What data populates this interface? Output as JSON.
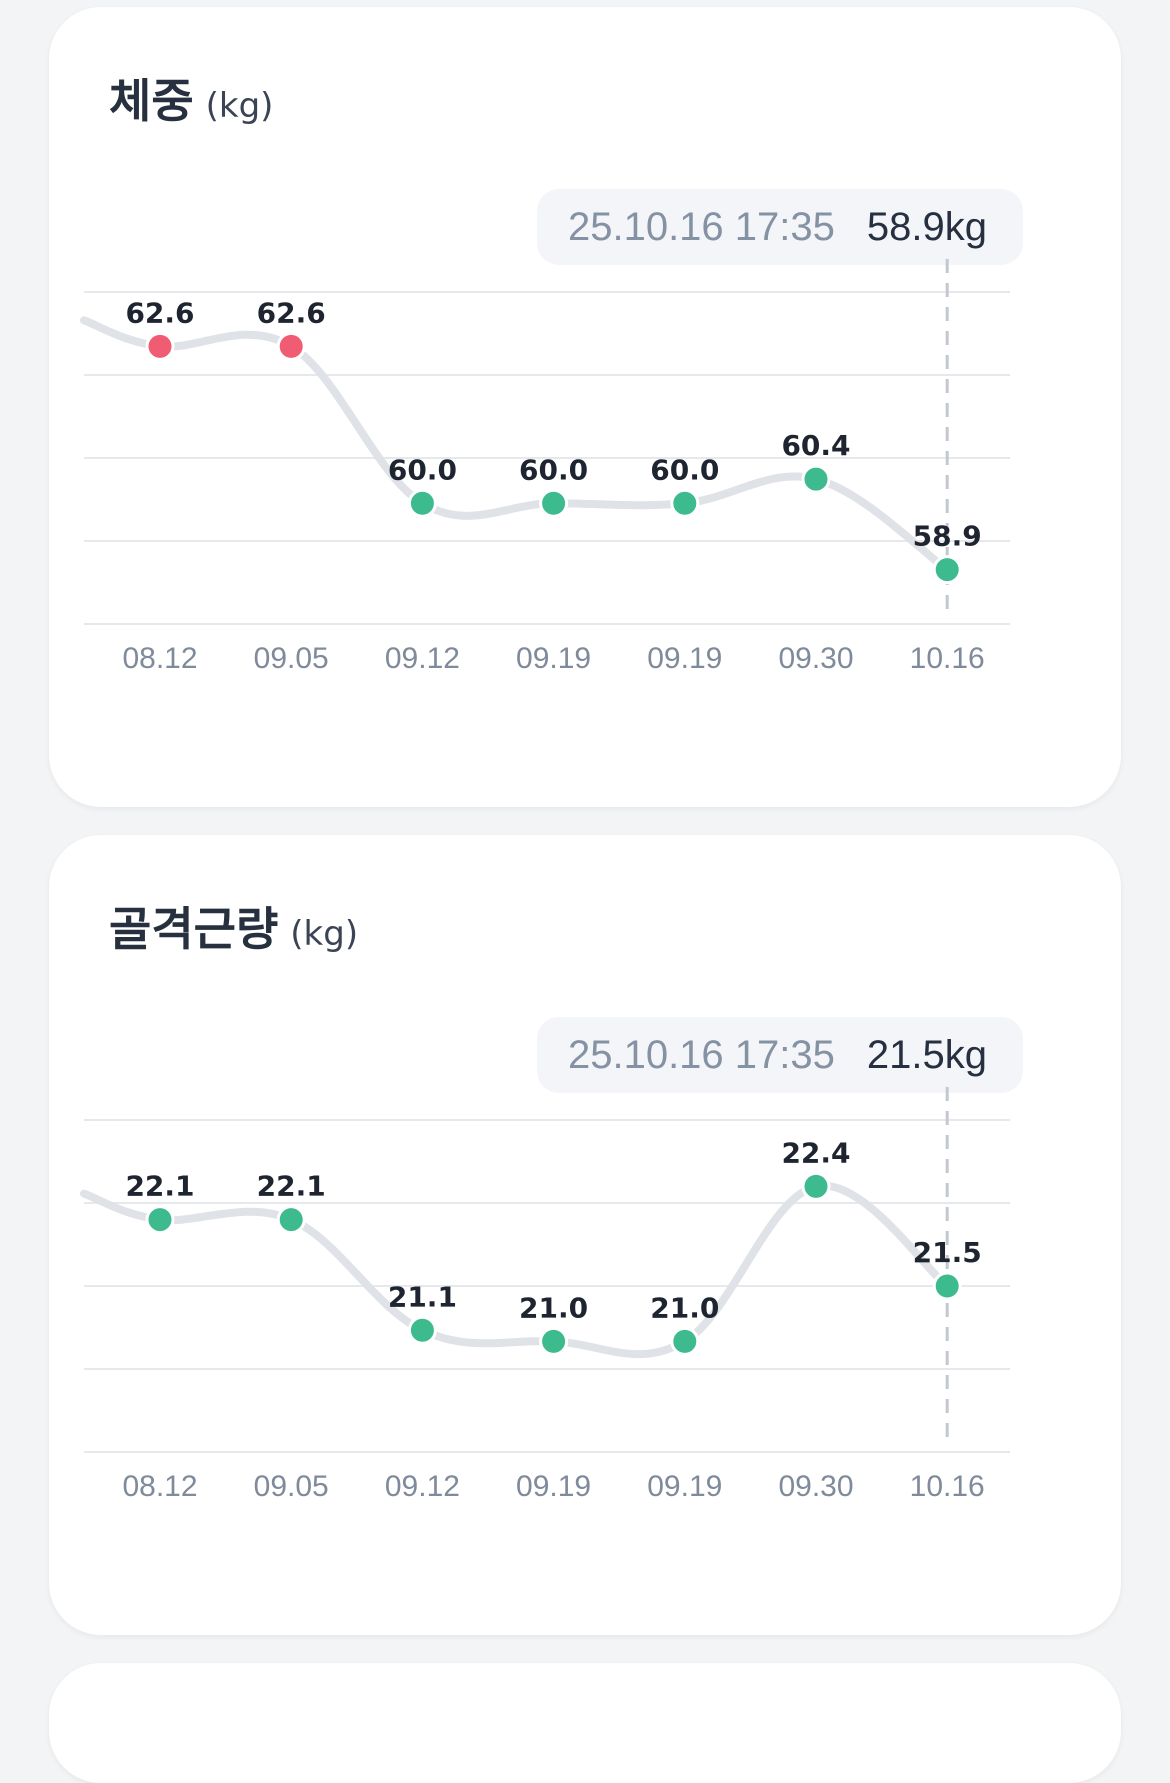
{
  "cards": [
    {
      "title": "체중",
      "unit": "(kg)",
      "tooltip": {
        "date": "25.10.16 17:35",
        "value": "58.9kg"
      },
      "chart_data": {
        "type": "line",
        "x": [
          "08.12",
          "09.05",
          "09.12",
          "09.19",
          "09.19",
          "09.30",
          "10.16"
        ],
        "values": [
          62.6,
          62.6,
          60.0,
          60.0,
          60.0,
          60.4,
          58.9
        ],
        "labels": [
          "62.6",
          "62.6",
          "60.0",
          "60.0",
          "60.0",
          "60.4",
          "58.9"
        ],
        "point_colors": [
          "#f05c72",
          "#f05c72",
          "#3dbb8e",
          "#3dbb8e",
          "#3dbb8e",
          "#3dbb8e",
          "#3dbb8e"
        ],
        "ylim": [
          58.0,
          63.5
        ],
        "grid": true,
        "selected_index": 6,
        "colors": {
          "line": "#dfe2e7",
          "grid": "#e6e8ec",
          "selected_marker": "#c3c8d0"
        }
      }
    },
    {
      "title": "골격근량",
      "unit": "(kg)",
      "tooltip": {
        "date": "25.10.16 17:35",
        "value": "21.5kg"
      },
      "chart_data": {
        "type": "line",
        "x": [
          "08.12",
          "09.05",
          "09.12",
          "09.19",
          "09.19",
          "09.30",
          "10.16"
        ],
        "values": [
          22.1,
          22.1,
          21.1,
          21.0,
          21.0,
          22.4,
          21.5
        ],
        "labels": [
          "22.1",
          "22.1",
          "21.1",
          "21.0",
          "21.0",
          "22.4",
          "21.5"
        ],
        "point_colors": [
          "#3dbb8e",
          "#3dbb8e",
          "#3dbb8e",
          "#3dbb8e",
          "#3dbb8e",
          "#3dbb8e",
          "#3dbb8e"
        ],
        "ylim": [
          20.0,
          23.0
        ],
        "grid": true,
        "selected_index": 6,
        "colors": {
          "line": "#dfe2e7",
          "grid": "#e6e8ec",
          "selected_marker": "#c3c8d0"
        }
      }
    }
  ]
}
